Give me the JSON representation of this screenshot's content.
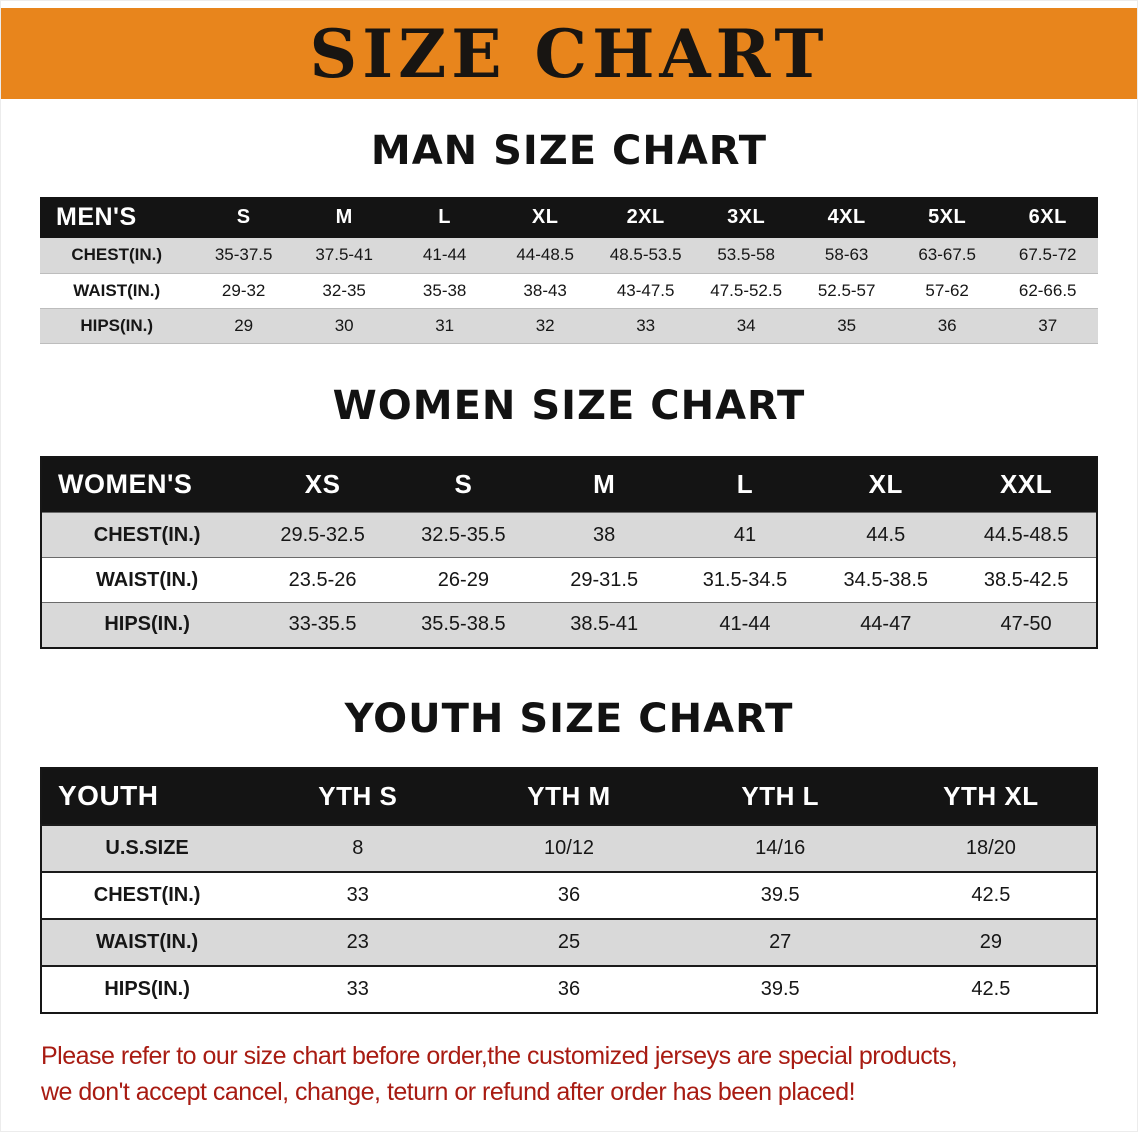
{
  "banner": {
    "title": "SIZE CHART"
  },
  "sections": [
    {
      "heading": "MAN SIZE CHART",
      "table": {
        "header": [
          "MEN'S",
          "S",
          "M",
          "L",
          "XL",
          "2XL",
          "3XL",
          "4XL",
          "5XL",
          "6XL"
        ],
        "rows": [
          [
            "CHEST(IN.)",
            "35-37.5",
            "37.5-41",
            "41-44",
            "44-48.5",
            "48.5-53.5",
            "53.5-58",
            "58-63",
            "63-67.5",
            "67.5-72"
          ],
          [
            "WAIST(IN.)",
            "29-32",
            "32-35",
            "35-38",
            "38-43",
            "43-47.5",
            "47.5-52.5",
            "52.5-57",
            "57-62",
            "62-66.5"
          ],
          [
            "HIPS(IN.)",
            "29",
            "30",
            "31",
            "32",
            "33",
            "34",
            "35",
            "36",
            "37"
          ]
        ]
      }
    },
    {
      "heading": "WOMEN SIZE CHART",
      "table": {
        "header": [
          "WOMEN'S",
          "XS",
          "S",
          "M",
          "L",
          "XL",
          "XXL"
        ],
        "rows": [
          [
            "CHEST(IN.)",
            "29.5-32.5",
            "32.5-35.5",
            "38",
            "41",
            "44.5",
            "44.5-48.5"
          ],
          [
            "WAIST(IN.)",
            "23.5-26",
            "26-29",
            "29-31.5",
            "31.5-34.5",
            "34.5-38.5",
            "38.5-42.5"
          ],
          [
            "HIPS(IN.)",
            "33-35.5",
            "35.5-38.5",
            "38.5-41",
            "41-44",
            "44-47",
            "47-50"
          ]
        ]
      }
    },
    {
      "heading": "YOUTH SIZE CHART",
      "table": {
        "header": [
          "YOUTH",
          "YTH S",
          "YTH M",
          "YTH L",
          "YTH XL"
        ],
        "rows": [
          [
            "U.S.SIZE",
            "8",
            "10/12",
            "14/16",
            "18/20"
          ],
          [
            "CHEST(IN.)",
            "33",
            "36",
            "39.5",
            "42.5"
          ],
          [
            "WAIST(IN.)",
            "23",
            "25",
            "27",
            "29"
          ],
          [
            "HIPS(IN.)",
            "33",
            "36",
            "39.5",
            "42.5"
          ]
        ]
      }
    }
  ],
  "disclaimer": {
    "line1": "Please refer to our size chart before order,the customized jerseys are special products,",
    "line2": "we don't accept cancel, change, teturn or refund after order has been placed!"
  },
  "colors": {
    "banner_bg": "#e8851c",
    "header_bg": "#141414",
    "row_alt": "#d9d9d9",
    "disclaimer_color": "#a81b12"
  }
}
